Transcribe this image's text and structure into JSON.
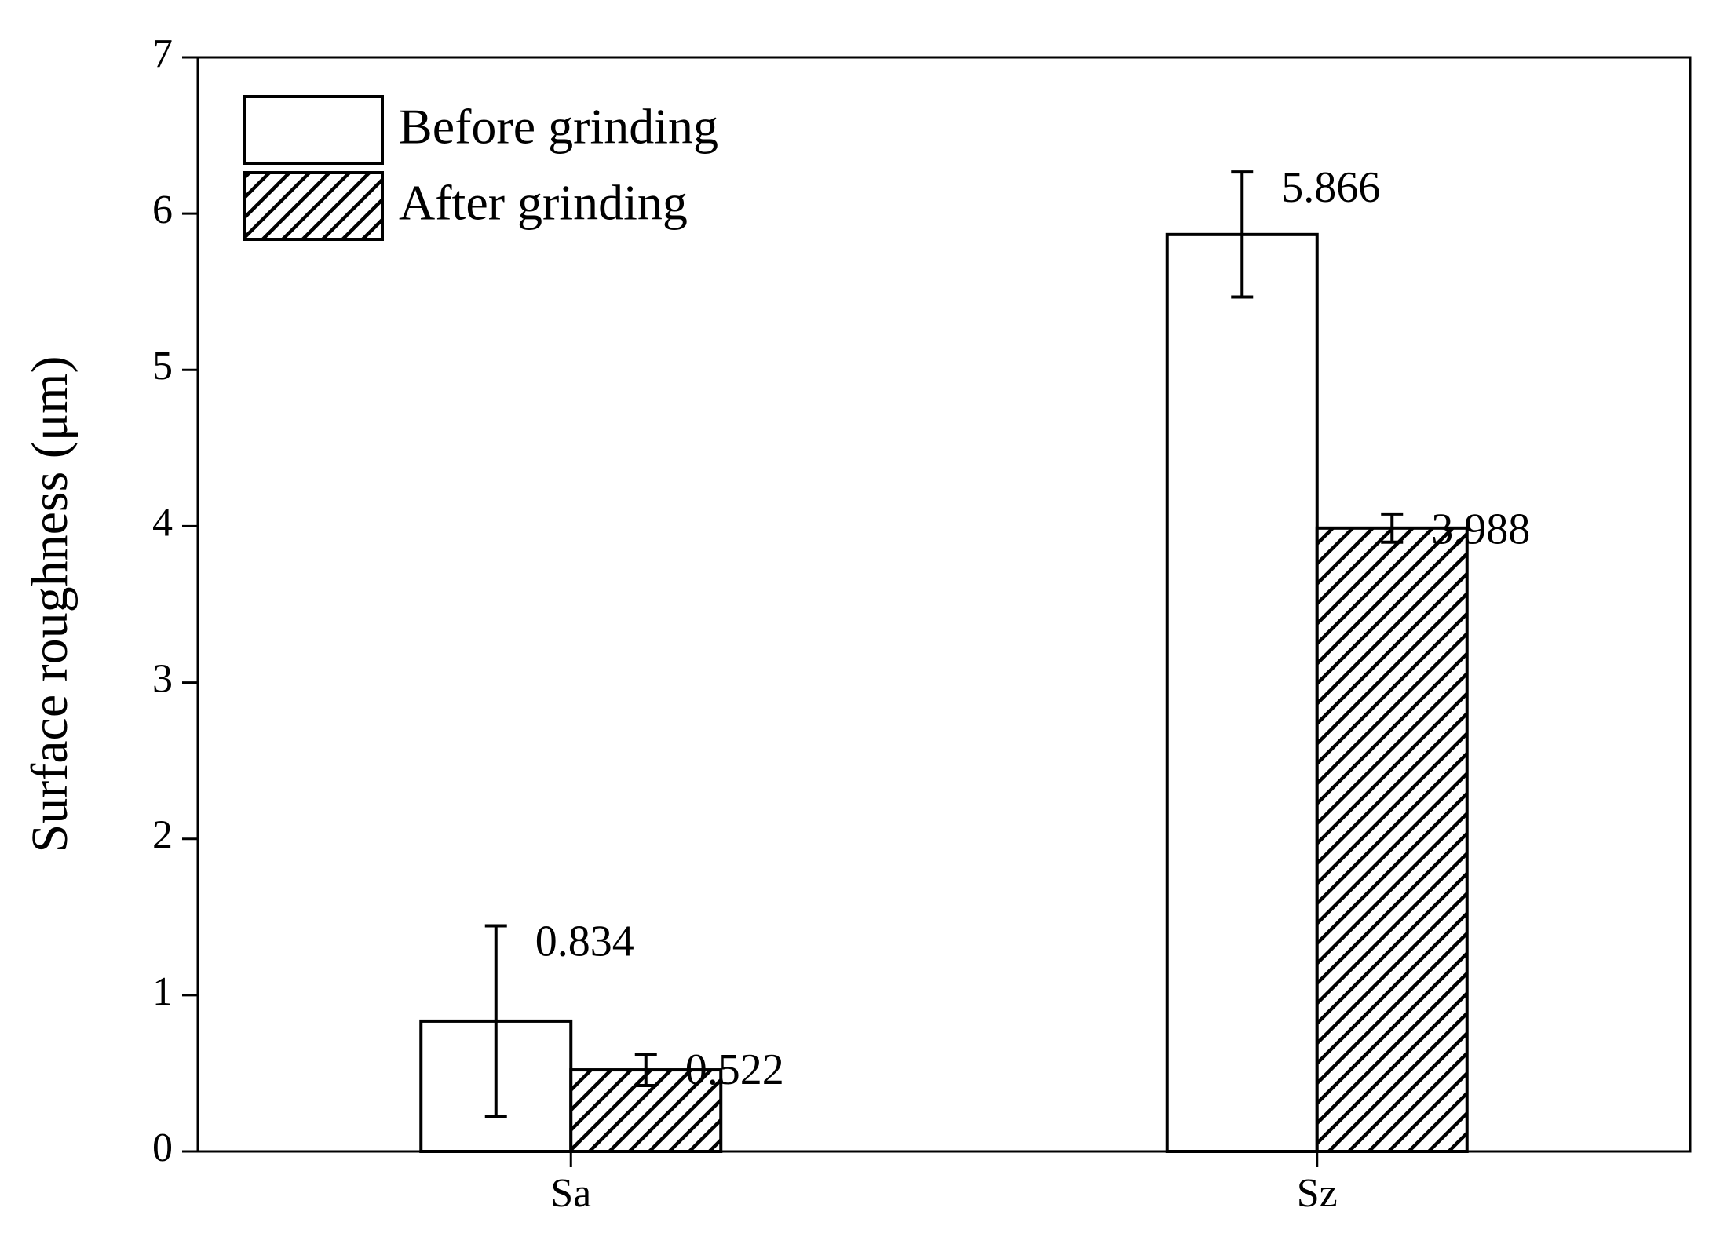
{
  "chart_data": {
    "type": "bar",
    "ylabel": "Surface roughness (μm)",
    "categories": [
      "Sa",
      "Sz"
    ],
    "series": [
      {
        "name": "Before grinding",
        "color": "#ffffff",
        "values": [
          0.834,
          5.866
        ],
        "errors": [
          0.61,
          0.4
        ]
      },
      {
        "name": "After grinding",
        "color": "#ffffff",
        "pattern": "hatch",
        "values": [
          0.522,
          3.988
        ],
        "errors": [
          0.1,
          0.09
        ]
      }
    ],
    "ylim": [
      0,
      7
    ],
    "yticks": [
      0,
      1,
      2,
      3,
      4,
      5,
      6,
      7
    ],
    "legend": "upper left",
    "grid": false
  }
}
